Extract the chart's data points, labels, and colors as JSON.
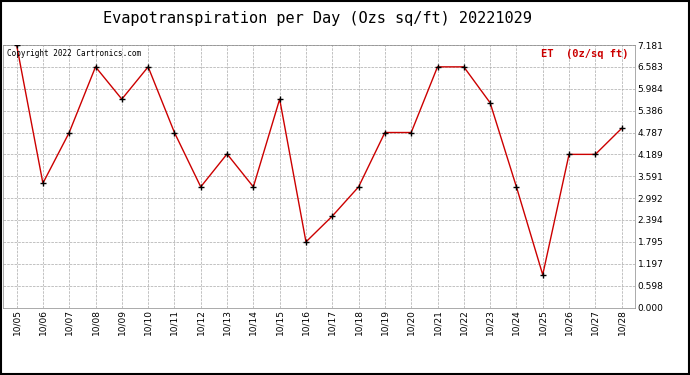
{
  "title": "Evapotranspiration per Day (Ozs sq/ft) 20221029",
  "copyright_text": "Copyright 2022 Cartronics.com",
  "legend_label": "ET  (0z/sq ft)",
  "dates": [
    "10/05",
    "10/06",
    "10/07",
    "10/08",
    "10/09",
    "10/10",
    "10/11",
    "10/12",
    "10/13",
    "10/14",
    "10/15",
    "10/16",
    "10/17",
    "10/18",
    "10/19",
    "10/20",
    "10/21",
    "10/22",
    "10/23",
    "10/24",
    "10/25",
    "10/26",
    "10/27",
    "10/28"
  ],
  "values": [
    7.181,
    3.4,
    4.787,
    6.583,
    5.7,
    6.583,
    4.787,
    3.3,
    4.2,
    3.3,
    5.7,
    1.795,
    2.5,
    3.3,
    4.787,
    4.787,
    6.583,
    6.583,
    5.6,
    3.3,
    0.897,
    4.189,
    4.189,
    4.9
  ],
  "ylim": [
    0.0,
    7.181
  ],
  "yticks": [
    0.0,
    0.598,
    1.197,
    1.795,
    2.394,
    2.992,
    3.591,
    4.189,
    4.787,
    5.386,
    5.984,
    6.583,
    7.181
  ],
  "line_color": "#cc0000",
  "marker_color": "#000000",
  "background_color": "#ffffff",
  "grid_color": "#aaaaaa",
  "title_fontsize": 11,
  "copyright_color": "#000000",
  "legend_color": "#cc0000",
  "tick_label_fontsize": 6.5,
  "border_color": "#000000"
}
